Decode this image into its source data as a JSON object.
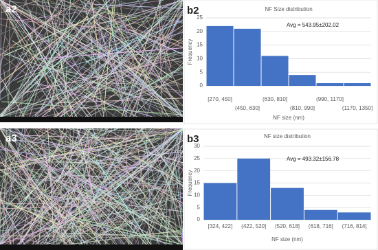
{
  "images": [
    {
      "label": "a2"
    },
    {
      "label": "a3"
    }
  ],
  "chart_data": [
    {
      "type": "bar",
      "panel_label": "b2",
      "title": "NF Size distribution",
      "categories": [
        "[270, 450]",
        "(450, 630]",
        "(630, 810]",
        "(810, 990]",
        "(990, 1170]",
        "(1170, 1350]"
      ],
      "values": [
        22,
        21,
        11,
        4,
        1,
        1
      ],
      "color": "#4472c4",
      "ylim": [
        0,
        25
      ],
      "yticks": [
        0,
        5,
        10,
        15,
        20,
        25
      ],
      "grid": true,
      "xlabel": "NF size (nm)",
      "ylabel": "Frequency",
      "annotation": "Avg = 543.95±202.02"
    },
    {
      "type": "bar",
      "panel_label": "b3",
      "title": "NF size distribution",
      "categories": [
        "[324, 422]",
        "(422, 520]",
        "(520, 618]",
        "(618, 716]",
        "(716, 814]"
      ],
      "values": [
        15,
        25,
        13,
        4,
        3
      ],
      "color": "#4472c4",
      "ylim": [
        0,
        30
      ],
      "yticks": [
        0,
        5,
        10,
        15,
        20,
        25,
        30
      ],
      "grid": true,
      "xlabel": "NF size (nm)",
      "ylabel": "Frequency",
      "annotation": "Avg = 493.32±156.78"
    }
  ]
}
